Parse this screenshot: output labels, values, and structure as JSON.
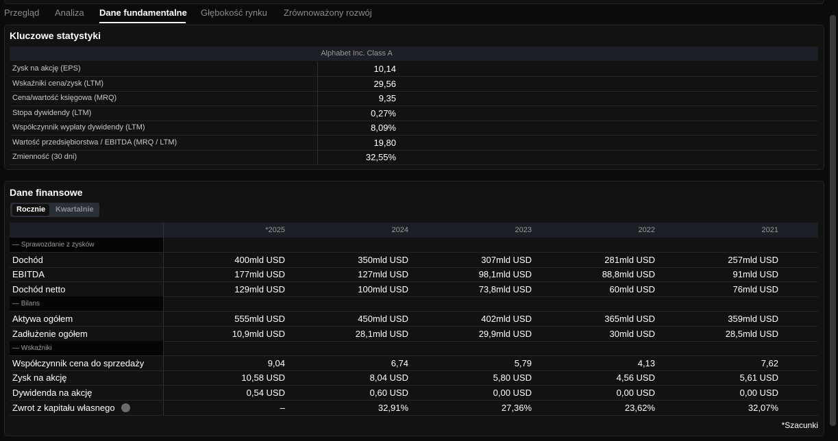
{
  "tabs": [
    "Przegląd",
    "Analiza",
    "Dane fundamentalne",
    "Głębokość rynku",
    "Zrównoważony rozwój"
  ],
  "active_tab": 2,
  "key_stats": {
    "title": "Kluczowe statystyki",
    "column": "Alphabet Inc. Class A",
    "rows": [
      [
        "Zysk na akcję (EPS)",
        "10,14"
      ],
      [
        "Wskaźniki cena/zysk (LTM)",
        "29,56"
      ],
      [
        "Cena/wartość księgowa (MRQ)",
        "9,35"
      ],
      [
        "Stopa dywidendy (LTM)",
        "0,27%"
      ],
      [
        "Współczynnik wypłaty dywidendy (LTM)",
        "8,09%"
      ],
      [
        "Wartość przedsiębiorstwa / EBITDA (MRQ / LTM)",
        "19,80"
      ],
      [
        "Zmienność (30 dni)",
        "32,55%"
      ]
    ]
  },
  "financials": {
    "title": "Dane finansowe",
    "toggle": [
      "Rocznie",
      "Kwartalnie"
    ],
    "active_toggle": 0,
    "columns": [
      "*2025",
      "2024",
      "2023",
      "2022",
      "2021"
    ],
    "sections": [
      {
        "name": "— Sprawozdanie z zysków",
        "rows": [
          [
            "Dochód",
            "400mld USD",
            "350mld USD",
            "307mld USD",
            "281mld USD",
            "257mld USD"
          ],
          [
            "EBITDA",
            "177mld USD",
            "127mld USD",
            "98,1mld USD",
            "88,8mld USD",
            "91mld USD"
          ],
          [
            "Dochód netto",
            "129mld USD",
            "100mld USD",
            "73,8mld USD",
            "60mld USD",
            "76mld USD"
          ]
        ]
      },
      {
        "name": "— Bilans",
        "rows": [
          [
            "Aktywa ogółem",
            "555mld USD",
            "450mld USD",
            "402mld USD",
            "365mld USD",
            "359mld USD"
          ],
          [
            "Zadłużenie ogółem",
            "10,9mld USD",
            "28,1mld USD",
            "29,9mld USD",
            "30mld USD",
            "28,5mld USD"
          ]
        ]
      },
      {
        "name": "— Wskaźniki",
        "rows": [
          [
            "Współczynnik cena do sprzedaży",
            "9,04",
            "6,74",
            "5,79",
            "4,13",
            "7,62"
          ],
          [
            "Zysk na akcję",
            "10,58 USD",
            "8,04 USD",
            "5,80 USD",
            "4,56 USD",
            "5,61 USD"
          ],
          [
            "Dywidenda na akcję",
            "0,54 USD",
            "0,60 USD",
            "0,00 USD",
            "0,00 USD",
            "0,00 USD"
          ],
          [
            "Zwrot z kapitału własnego",
            "–",
            "32,91%",
            "27,36%",
            "23,62%",
            "32,07%"
          ]
        ]
      }
    ],
    "footnote": "*Szacunki"
  }
}
